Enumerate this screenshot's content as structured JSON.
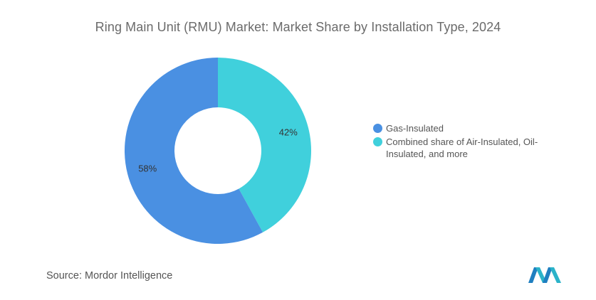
{
  "title": "Ring Main Unit (RMU) Market: Market Share by Installation Type, 2024",
  "source": {
    "label": "Source:",
    "value": "Mordor Intelligence"
  },
  "logo": {
    "icon": "mordor-intelligence-logo-icon",
    "color": "#2a9fd6"
  },
  "chart_data": {
    "type": "pie",
    "donut": true,
    "title": "Ring Main Unit (RMU) Market: Market Share by Installation Type, 2024",
    "legend_position": "right",
    "slices": [
      {
        "name": "Gas-Insulated",
        "value": 58,
        "label": "58%",
        "color": "#4a90e2"
      },
      {
        "name": "Combined share of Air-Insulated, Oil-Insulated, and more",
        "value": 42,
        "label": "42%",
        "color": "#40d0dc"
      }
    ]
  }
}
